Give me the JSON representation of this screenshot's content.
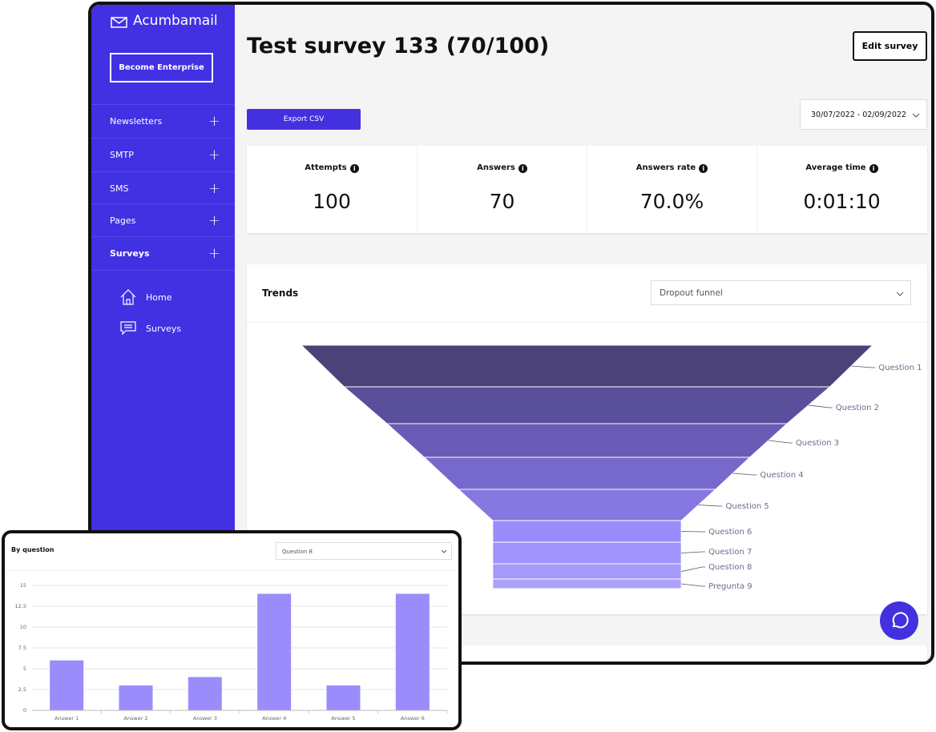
{
  "sidebar": {
    "brand": "Acumbamail",
    "cta": "Become Enterprise",
    "menu": [
      "Newsletters",
      "SMTP",
      "SMS",
      "Pages",
      "Surveys"
    ],
    "submenu": [
      "Home",
      "Surveys"
    ]
  },
  "header": {
    "title": "Test survey 133 (70/100)",
    "edit": "Edit survey",
    "export": "Export CSV",
    "date_range": "30/07/2022 - 02/09/2022"
  },
  "stats": [
    {
      "label": "Attempts",
      "value": "100"
    },
    {
      "label": "Answers",
      "value": "70"
    },
    {
      "label": "Answers rate",
      "value": "70.0%"
    },
    {
      "label": "Average time",
      "value": "0:01:10"
    }
  ],
  "trends": {
    "title": "Trends",
    "select": "Dropout funnel"
  },
  "by_question": {
    "title": "By question",
    "select": "Question 8"
  },
  "chart_data": [
    {
      "type": "funnel",
      "categories": [
        "Question 1",
        "Question 2",
        "Question 3",
        "Question 4",
        "Question 5",
        "Question 6",
        "Question 7",
        "Question 8",
        "Pregunta 9"
      ],
      "values": [
        100,
        85,
        70,
        57,
        45,
        33,
        33,
        33,
        33
      ],
      "colors": [
        "#4b4279",
        "#5a4f9a",
        "#6a5cb6",
        "#7769cb",
        "#8678e0",
        "#9a8cfb",
        "#a093fb",
        "#a69afa",
        "#aca1fb"
      ]
    },
    {
      "type": "bar",
      "categories": [
        "Answer 1",
        "Answer 2",
        "Answer 3",
        "Answer 4",
        "Answer 5",
        "Answer 6"
      ],
      "values": [
        6,
        3,
        4,
        14,
        3,
        14
      ],
      "color": "#9a8cfb",
      "ylim": [
        0,
        15
      ],
      "yticks": [
        0,
        2.5,
        5,
        7.5,
        10,
        12.5,
        15
      ],
      "grid": true
    }
  ]
}
